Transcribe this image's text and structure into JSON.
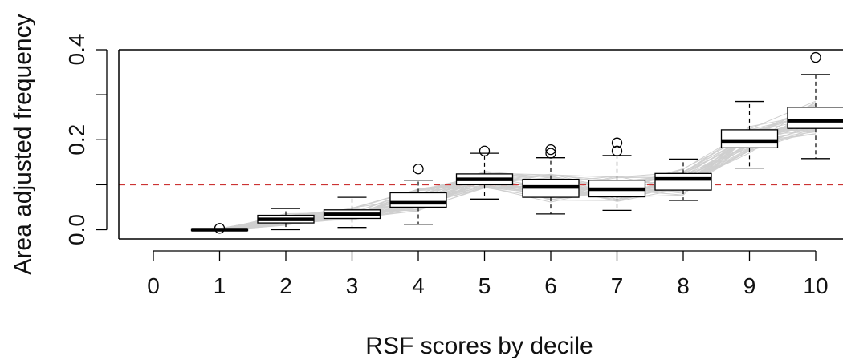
{
  "chart_data": {
    "type": "boxplot",
    "title": "",
    "xlabel": "RSF scores by decile",
    "ylabel": "Area adjusted frequency",
    "categories": [
      "0",
      "1",
      "2",
      "3",
      "4",
      "5",
      "6",
      "7",
      "8",
      "9",
      "10"
    ],
    "ylim": [
      -0.02,
      0.4
    ],
    "y_ticks": [
      0.0,
      0.1,
      0.2,
      0.3,
      0.4
    ],
    "y_tick_labels": [
      "0.0",
      "",
      "0.2",
      "",
      "0.4"
    ],
    "reference_line": {
      "y": 0.1,
      "style": "dashed",
      "color": "#cc3333"
    },
    "boxes": [
      {
        "category": "1",
        "min": -0.002,
        "q1": -0.002,
        "median": 0.0,
        "q3": 0.002,
        "max": 0.002,
        "outliers": [
          0.003
        ]
      },
      {
        "category": "2",
        "min": 0.0,
        "q1": 0.015,
        "median": 0.023,
        "q3": 0.032,
        "max": 0.047,
        "outliers": []
      },
      {
        "category": "3",
        "min": 0.005,
        "q1": 0.025,
        "median": 0.034,
        "q3": 0.044,
        "max": 0.072,
        "outliers": []
      },
      {
        "category": "4",
        "min": 0.012,
        "q1": 0.05,
        "median": 0.06,
        "q3": 0.082,
        "max": 0.11,
        "outliers": [
          0.135
        ]
      },
      {
        "category": "5",
        "min": 0.068,
        "q1": 0.1,
        "median": 0.112,
        "q3": 0.124,
        "max": 0.17,
        "outliers": [
          0.175
        ]
      },
      {
        "category": "6",
        "min": 0.035,
        "q1": 0.072,
        "median": 0.095,
        "q3": 0.112,
        "max": 0.16,
        "outliers": [
          0.17,
          0.178
        ]
      },
      {
        "category": "7",
        "min": 0.043,
        "q1": 0.073,
        "median": 0.09,
        "q3": 0.11,
        "max": 0.165,
        "outliers": [
          0.175,
          0.193
        ]
      },
      {
        "category": "8",
        "min": 0.065,
        "q1": 0.088,
        "median": 0.113,
        "q3": 0.125,
        "max": 0.157,
        "outliers": []
      },
      {
        "category": "9",
        "min": 0.137,
        "q1": 0.182,
        "median": 0.197,
        "q3": 0.222,
        "max": 0.285,
        "outliers": []
      },
      {
        "category": "10",
        "min": 0.158,
        "q1": 0.225,
        "median": 0.242,
        "q3": 0.272,
        "max": 0.345,
        "outliers": [
          0.383
        ]
      }
    ],
    "background_series": {
      "color": "#cfcfcf",
      "description_count": 40
    },
    "grid": false,
    "legend": "none"
  }
}
